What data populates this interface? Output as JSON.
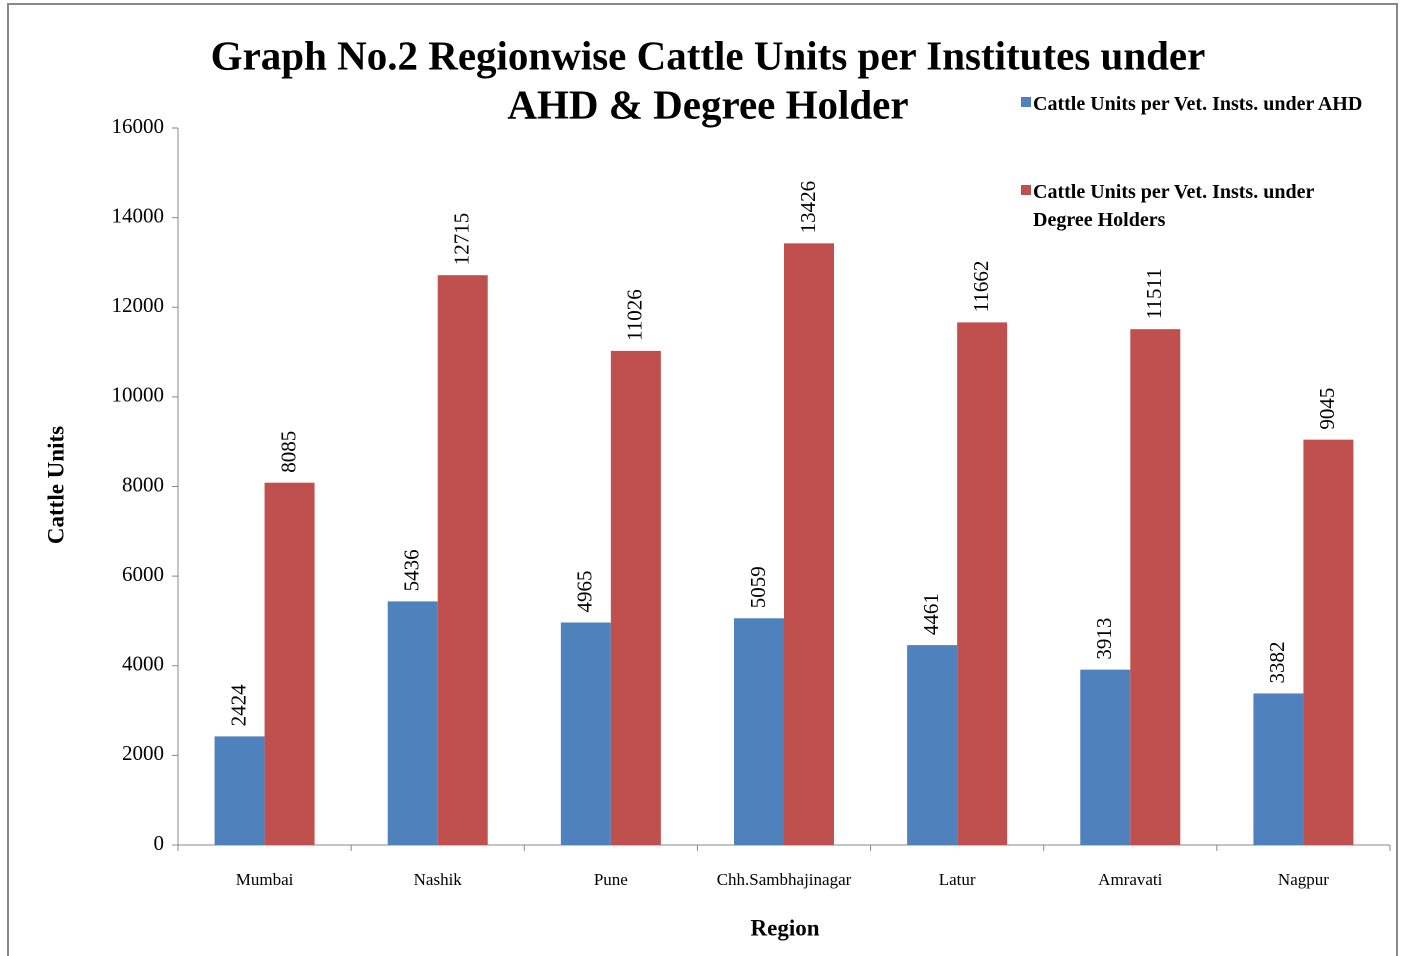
{
  "chart_data": {
    "type": "bar",
    "title": [
      "Graph No.2 Regionwise Cattle Units per Institutes under",
      "AHD & Degree Holder"
    ],
    "x_label": "Region",
    "y_label": "Cattle Units",
    "categories": [
      "Mumbai",
      "Nashik",
      "Pune",
      "Chh.Sambhajinagar",
      "Latur",
      "Amravati",
      "Nagpur"
    ],
    "series": [
      {
        "name": "Cattle Units per Vet. Insts. under AHD",
        "color": "#4f81bd",
        "values": [
          2424,
          5436,
          4965,
          5059,
          4461,
          3913,
          3382
        ]
      },
      {
        "name": "Cattle Units per Vet. Insts. under Degree Holders",
        "color": "#c0504d",
        "values": [
          8085,
          12715,
          11026,
          13426,
          11662,
          11511,
          9045
        ]
      }
    ],
    "ylim": [
      0,
      16000
    ],
    "yticks": [
      0,
      2000,
      4000,
      6000,
      8000,
      10000,
      12000,
      14000,
      16000
    ],
    "grid": false,
    "legend": "top-right"
  }
}
